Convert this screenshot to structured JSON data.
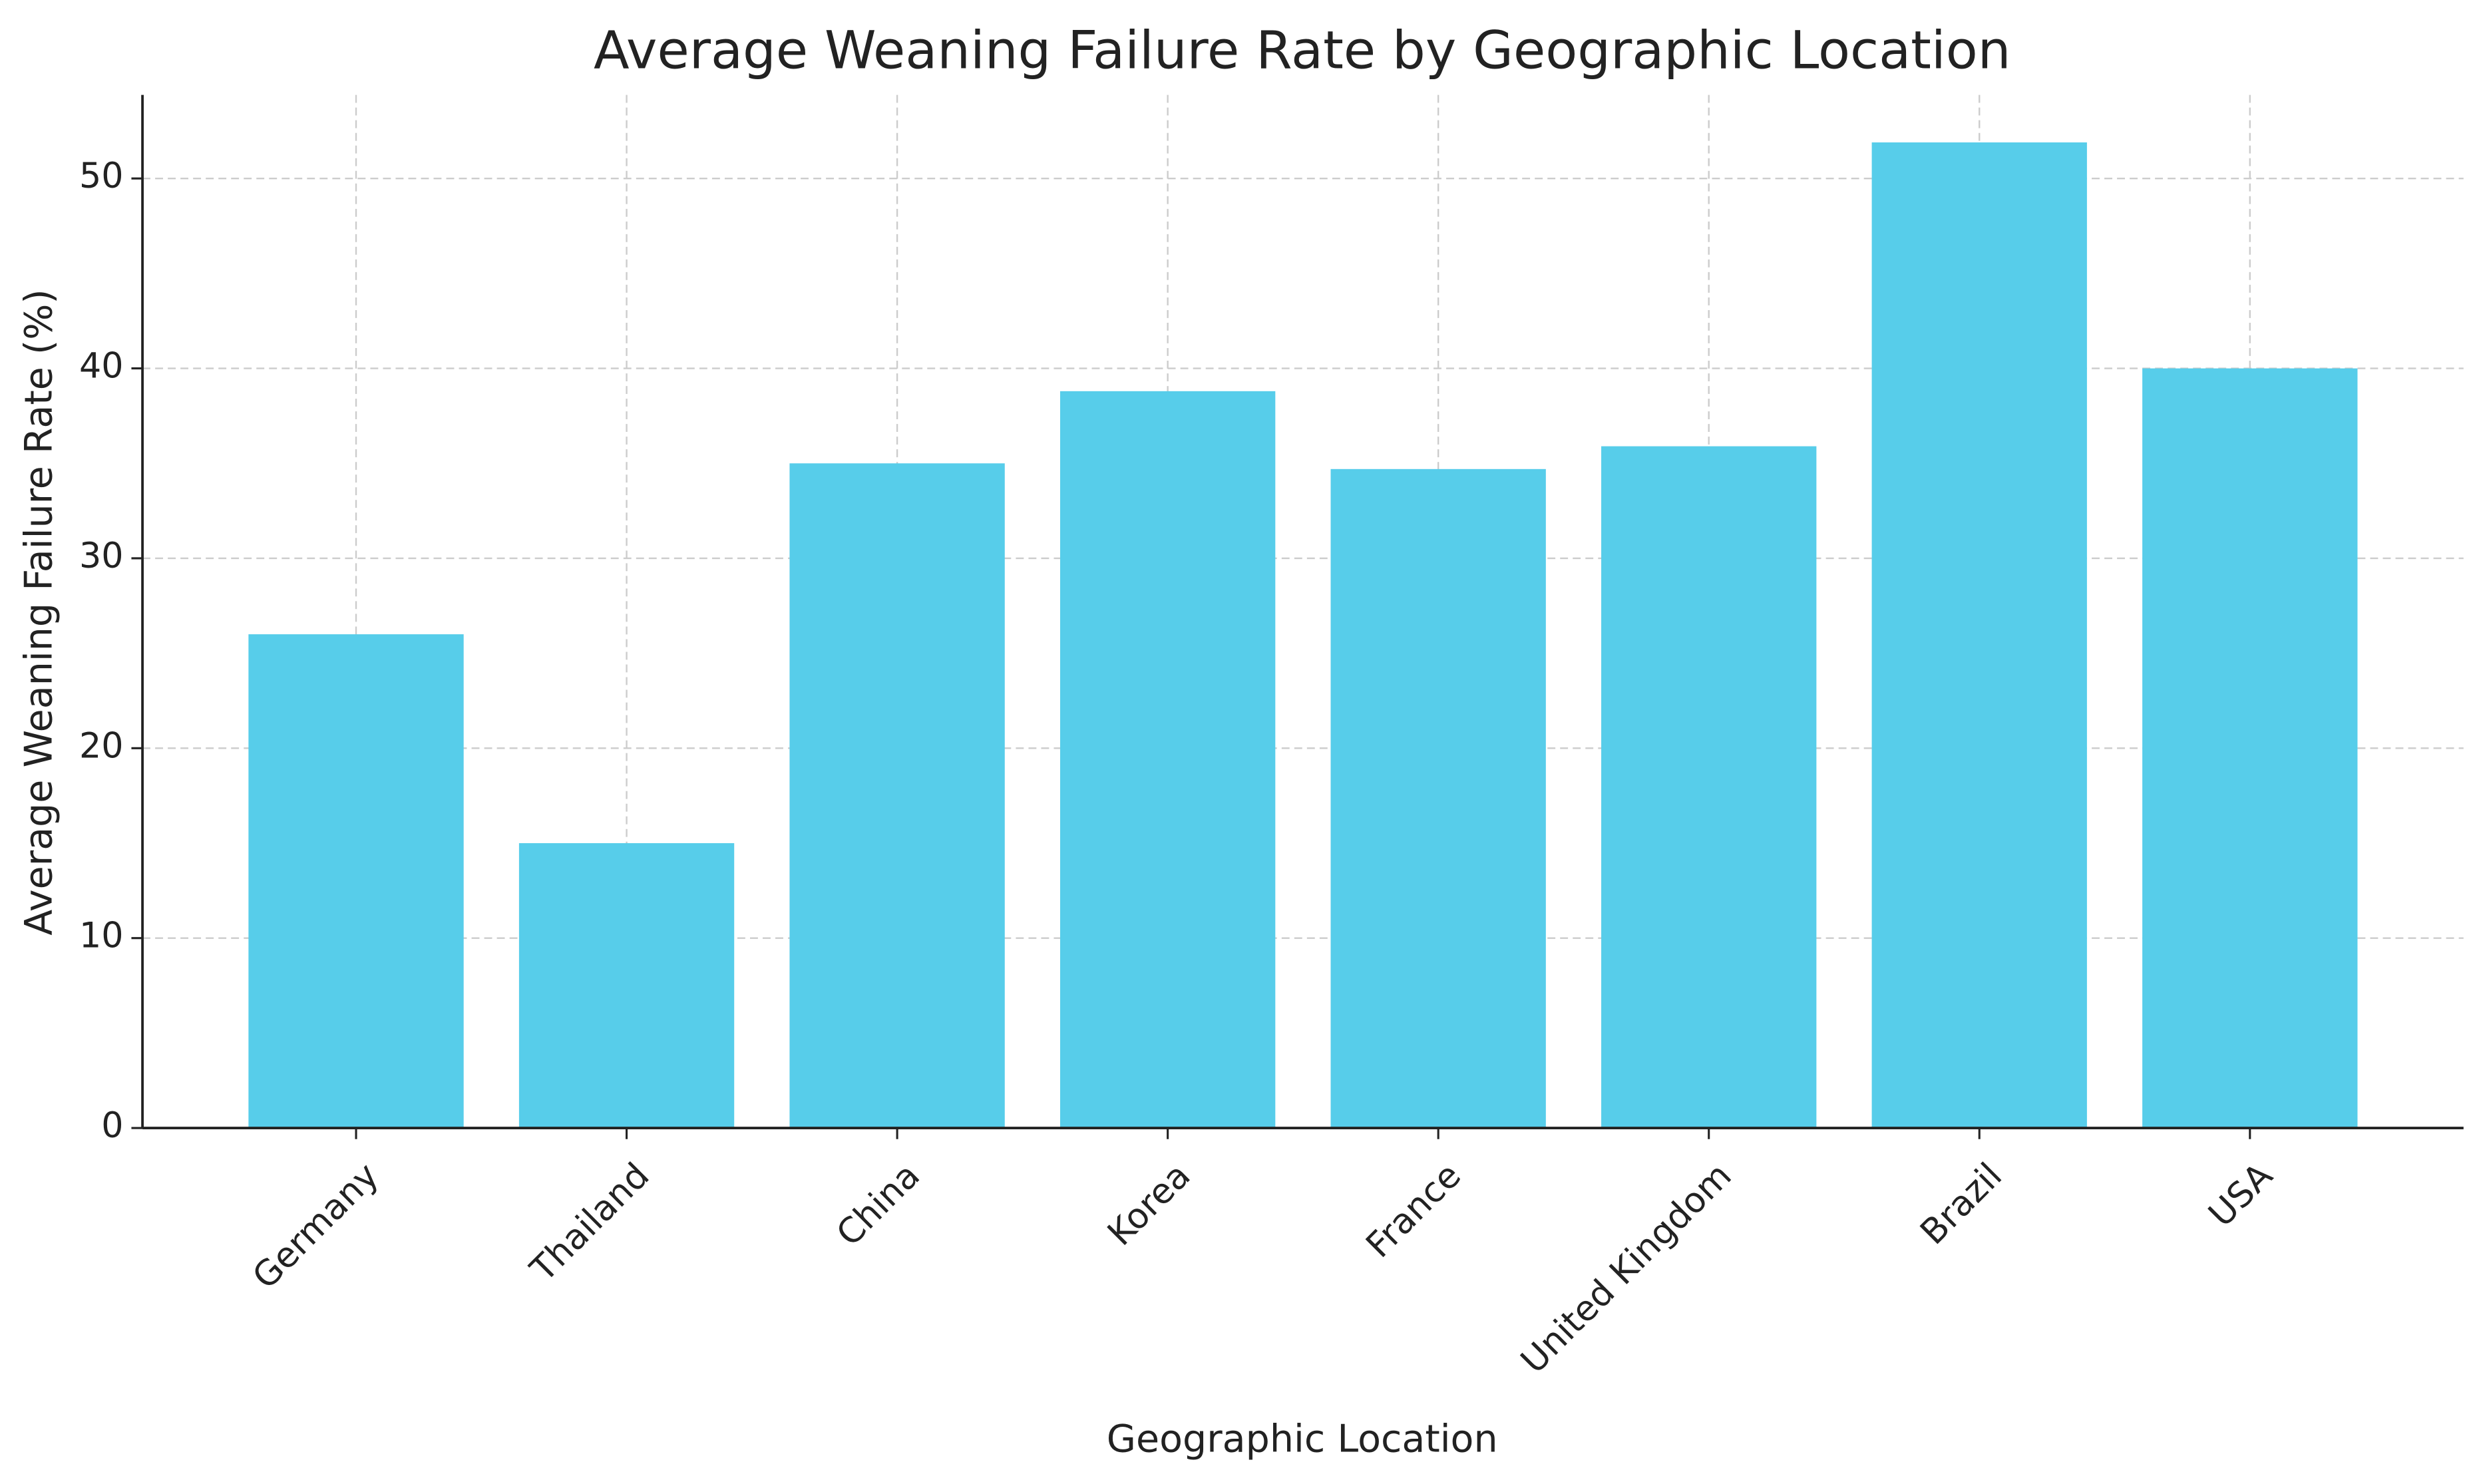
{
  "chart_data": {
    "type": "bar",
    "title": "Average Weaning Failure Rate by Geographic Location",
    "x_label": "Geographic Location",
    "y_label": "Average Weaning Failure Rate (%)",
    "categories": [
      "Germany",
      "Thailand",
      "China",
      "Korea",
      "France",
      "United Kingdom",
      "Brazil",
      "USA"
    ],
    "values": [
      26,
      15,
      35,
      38.8,
      34.7,
      35.9,
      51.9,
      40
    ],
    "color": "#57cdea",
    "ylim": [
      0,
      54.4
    ],
    "yticks": [
      0,
      10,
      20,
      30,
      40,
      50
    ],
    "grid": true
  }
}
